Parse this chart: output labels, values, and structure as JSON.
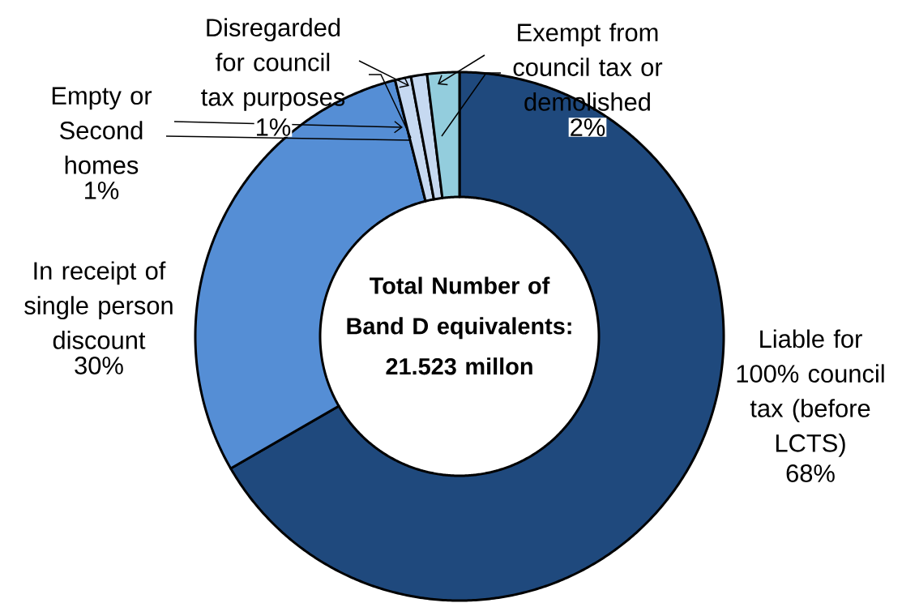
{
  "chart_data": {
    "type": "donut",
    "categories": [
      "Liable for 100% council tax (before LCTS)",
      "In receipt of single person discount",
      "Empty or Second homes",
      "Disregarded for council tax purposes",
      "Exempt from council tax or demolished"
    ],
    "values": [
      68,
      30,
      1,
      1,
      2
    ],
    "value_labels": [
      "68%",
      "30%",
      "1%",
      "1%",
      "2%"
    ],
    "colors": [
      "#1f497d",
      "#558ed5",
      "#c6d9f1",
      "#c6d9f1",
      "#93cddd"
    ],
    "annotations": [
      "**Total Number of Band D equivalents: 21.523 millon**"
    ]
  }
}
